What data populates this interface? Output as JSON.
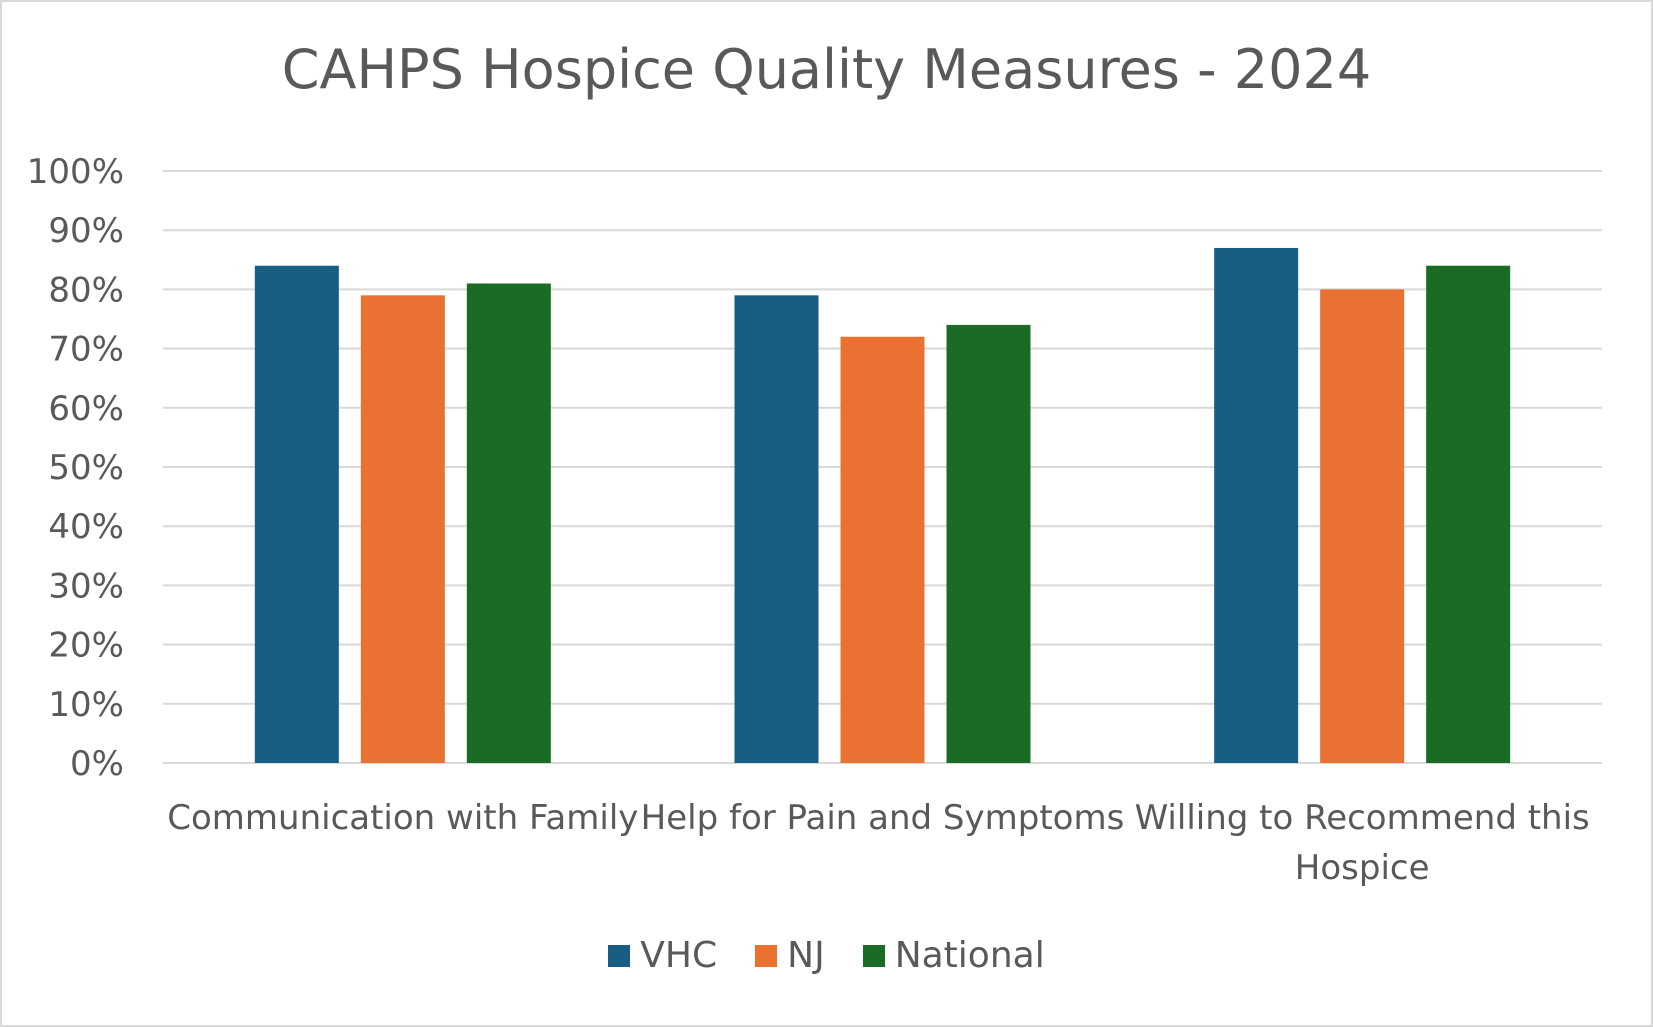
{
  "chart_data": {
    "type": "bar",
    "title": "CAHPS Hospice Quality Measures - 2024",
    "categories": [
      [
        "Communication with Family"
      ],
      [
        "Help for Pain and Symptoms"
      ],
      [
        "Willing to Recommend this",
        "Hospice"
      ]
    ],
    "series": [
      {
        "name": "VHC",
        "color": "#175e82",
        "values": [
          84,
          79,
          87
        ]
      },
      {
        "name": "NJ",
        "color": "#e97132",
        "values": [
          79,
          72,
          80
        ]
      },
      {
        "name": "National",
        "color": "#1a6b24",
        "values": [
          81,
          74,
          84
        ]
      }
    ],
    "ylim": [
      0,
      100
    ],
    "yticks": [
      "0%",
      "10%",
      "20%",
      "30%",
      "40%",
      "50%",
      "60%",
      "70%",
      "80%",
      "90%",
      "100%"
    ],
    "grid": true,
    "legend_position": "bottom"
  }
}
